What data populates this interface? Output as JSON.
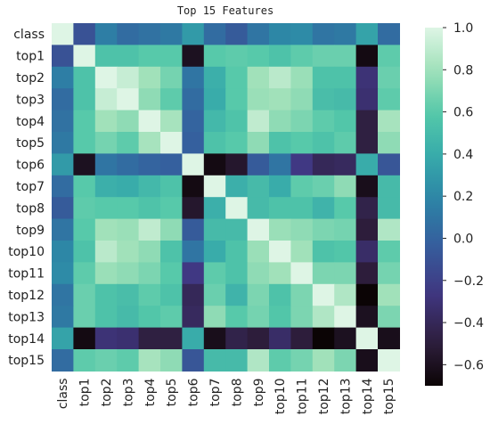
{
  "chart_data": {
    "type": "heatmap",
    "title": "Top 15 Features",
    "xlabel": "",
    "ylabel": "",
    "labels": [
      "class",
      "top1",
      "top2",
      "top3",
      "top4",
      "top5",
      "top6",
      "top7",
      "top8",
      "top9",
      "top10",
      "top11",
      "top12",
      "top13",
      "top14",
      "top15"
    ],
    "matrix": [
      [
        1.0,
        -0.1,
        0.15,
        0.05,
        0.08,
        0.12,
        0.3,
        0.05,
        -0.05,
        0.1,
        0.2,
        0.22,
        0.1,
        0.12,
        0.35,
        0.05
      ],
      [
        -0.1,
        1.0,
        0.55,
        0.55,
        0.6,
        0.6,
        -0.6,
        0.6,
        0.62,
        0.6,
        0.55,
        0.62,
        0.65,
        0.65,
        -0.65,
        0.62
      ],
      [
        0.15,
        0.55,
        1.0,
        0.92,
        0.8,
        0.68,
        0.1,
        0.42,
        0.6,
        0.8,
        0.88,
        0.78,
        0.55,
        0.55,
        -0.3,
        0.65
      ],
      [
        0.05,
        0.55,
        0.92,
        1.0,
        0.75,
        0.62,
        0.05,
        0.4,
        0.6,
        0.78,
        0.8,
        0.75,
        0.52,
        0.5,
        -0.32,
        0.62
      ],
      [
        0.08,
        0.6,
        0.8,
        0.75,
        1.0,
        0.82,
        0.0,
        0.48,
        0.56,
        0.9,
        0.75,
        0.7,
        0.62,
        0.58,
        -0.48,
        0.82
      ],
      [
        0.12,
        0.6,
        0.68,
        0.62,
        0.82,
        1.0,
        -0.02,
        0.55,
        0.6,
        0.75,
        0.55,
        0.6,
        0.55,
        0.62,
        -0.48,
        0.75
      ],
      [
        0.3,
        -0.6,
        0.1,
        0.05,
        0.0,
        -0.02,
        1.0,
        -0.65,
        -0.55,
        -0.05,
        0.1,
        -0.25,
        -0.4,
        -0.38,
        0.4,
        -0.08
      ],
      [
        0.05,
        0.6,
        0.42,
        0.4,
        0.48,
        0.55,
        -0.65,
        1.0,
        0.42,
        0.5,
        0.4,
        0.62,
        0.65,
        0.75,
        -0.62,
        0.5
      ],
      [
        -0.05,
        0.62,
        0.6,
        0.6,
        0.56,
        0.6,
        -0.55,
        0.42,
        1.0,
        0.5,
        0.55,
        0.55,
        0.45,
        0.6,
        -0.45,
        0.5
      ],
      [
        0.1,
        0.6,
        0.8,
        0.78,
        0.9,
        0.75,
        -0.05,
        0.5,
        0.5,
        1.0,
        0.78,
        0.75,
        0.7,
        0.68,
        -0.5,
        0.85
      ],
      [
        0.2,
        0.55,
        0.88,
        0.8,
        0.75,
        0.55,
        0.1,
        0.4,
        0.55,
        0.78,
        1.0,
        0.8,
        0.55,
        0.58,
        -0.35,
        0.62
      ],
      [
        0.22,
        0.62,
        0.78,
        0.75,
        0.7,
        0.6,
        -0.25,
        0.62,
        0.55,
        0.75,
        0.8,
        1.0,
        0.7,
        0.7,
        -0.5,
        0.68
      ],
      [
        0.1,
        0.65,
        0.55,
        0.52,
        0.62,
        0.55,
        -0.4,
        0.65,
        0.45,
        0.7,
        0.55,
        0.7,
        1.0,
        0.85,
        -0.72,
        0.8
      ],
      [
        0.12,
        0.65,
        0.55,
        0.5,
        0.58,
        0.62,
        -0.38,
        0.75,
        0.6,
        0.68,
        0.58,
        0.7,
        0.85,
        1.0,
        -0.6,
        0.7
      ],
      [
        0.35,
        -0.65,
        -0.3,
        -0.32,
        -0.48,
        -0.48,
        0.4,
        -0.62,
        -0.45,
        -0.5,
        -0.35,
        -0.5,
        -0.72,
        -0.6,
        1.0,
        -0.62
      ],
      [
        0.05,
        0.62,
        0.65,
        0.62,
        0.82,
        0.75,
        -0.08,
        0.5,
        0.5,
        0.85,
        0.62,
        0.68,
        0.8,
        0.7,
        -0.62,
        1.0
      ]
    ],
    "vmin": -0.7,
    "vmax": 1.0,
    "colormap": "mako",
    "colorbar_ticks": [
      1.0,
      0.8,
      0.6,
      0.4,
      0.2,
      0.0,
      -0.2,
      -0.4,
      -0.6
    ],
    "colorbar_tick_labels": [
      "1.0",
      "0.8",
      "0.6",
      "0.4",
      "0.2",
      "0.0",
      "−0.2",
      "−0.4",
      "−0.6"
    ]
  }
}
